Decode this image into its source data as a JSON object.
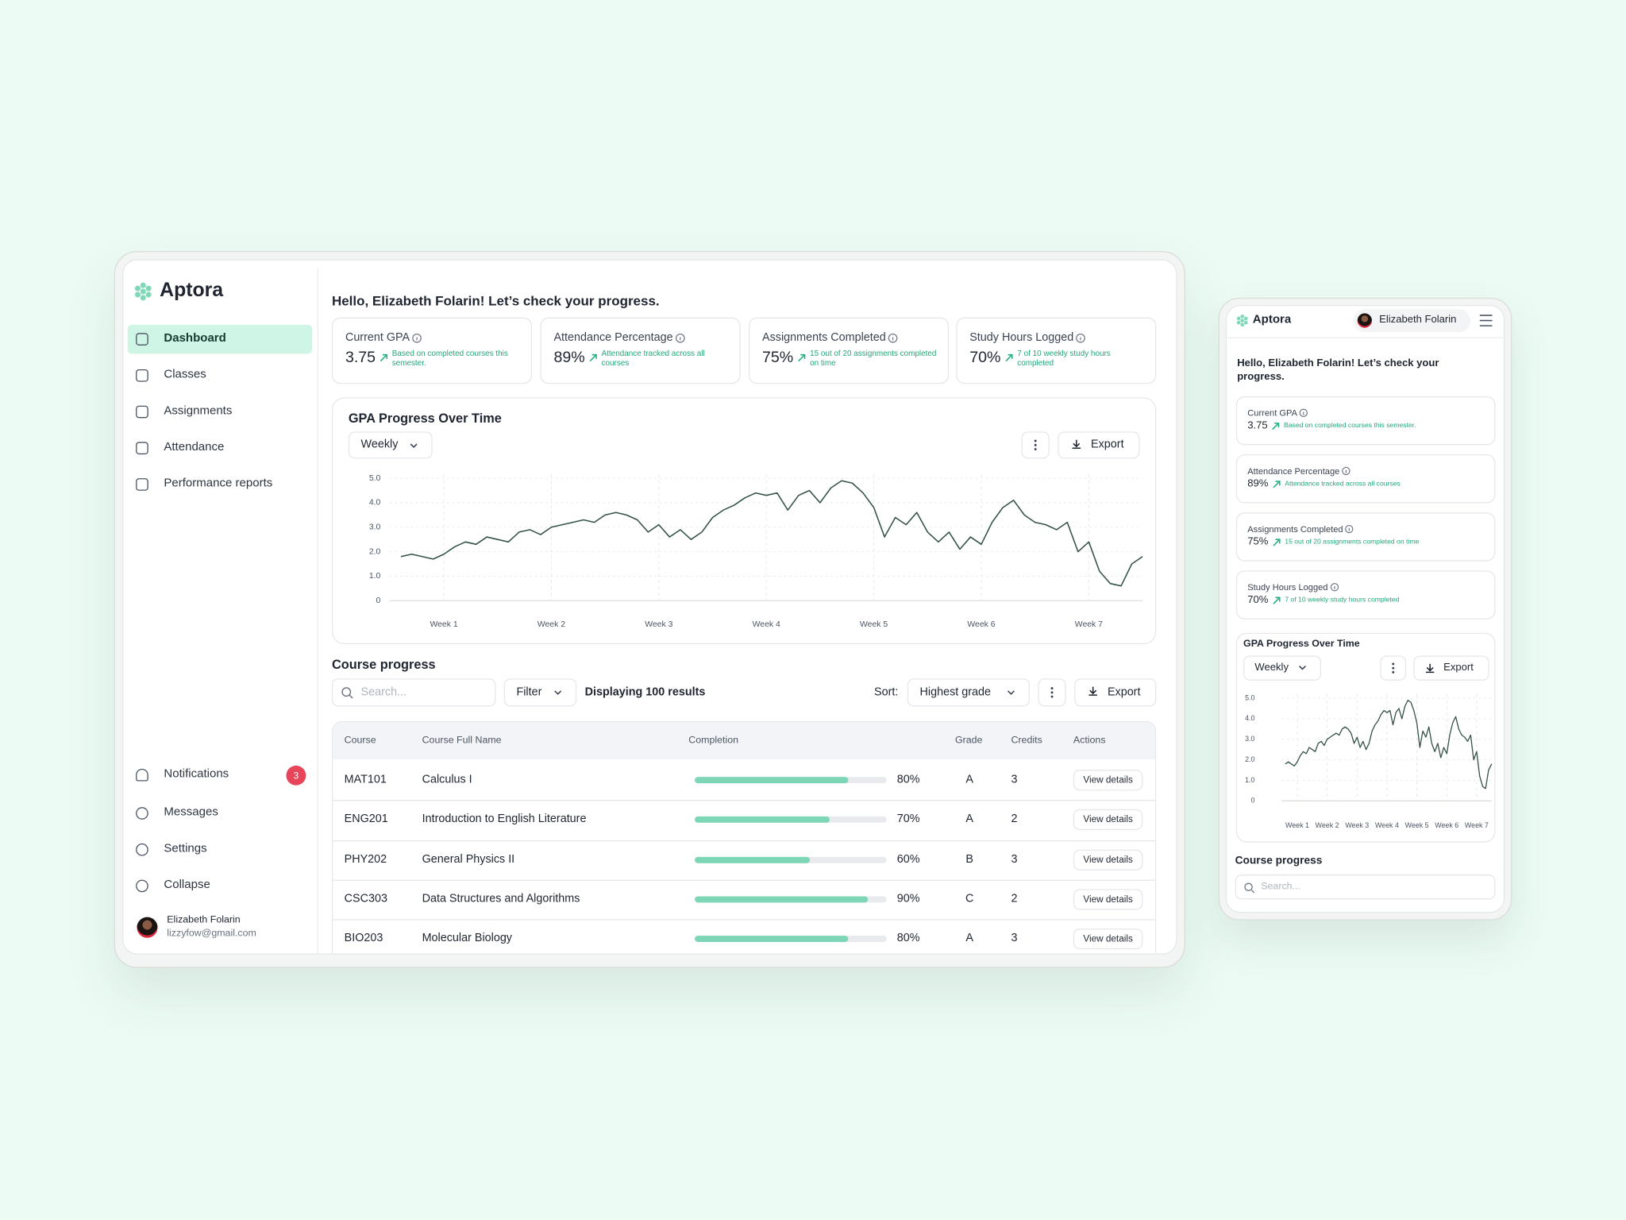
{
  "brand": "Aptora",
  "nav": [
    "Dashboard",
    "Classes",
    "Assignments",
    "Attendance",
    "Performance reports"
  ],
  "nav_bottom": [
    "Notifications",
    "Messages",
    "Settings",
    "Collapse"
  ],
  "notification_count": "3",
  "user": {
    "name": "Elizabeth Folarin",
    "email": "lizzyfow@gmail.com"
  },
  "greeting": "Hello, Elizabeth Folarin! Let’s check your progress.",
  "stats": [
    {
      "label": "Current GPA",
      "value": "3.75",
      "note": "Based on completed courses this semester."
    },
    {
      "label": "Attendance Percentage",
      "value": "89%",
      "note": "Attendance tracked across all courses"
    },
    {
      "label": "Assignments Completed",
      "value": "75%",
      "note": "15 out of 20 assignments completed on time"
    },
    {
      "label": "Study Hours Logged",
      "value": "70%",
      "note": "7 of 10 weekly study hours completed"
    }
  ],
  "chart_controls": {
    "period": "Weekly",
    "export": "Export"
  },
  "chart_data": {
    "type": "line",
    "title": "GPA Progress Over Time",
    "color": "#35524a",
    "grid": true,
    "xlim": [
      0.5,
      7.5
    ],
    "xticks": [
      {
        "value": 1,
        "label": "Week 1"
      },
      {
        "value": 2,
        "label": "Week 2"
      },
      {
        "value": 3,
        "label": "Week 3"
      },
      {
        "value": 4,
        "label": "Week 4"
      },
      {
        "value": 5,
        "label": "Week 5"
      },
      {
        "value": 6,
        "label": "Week 6"
      },
      {
        "value": 7,
        "label": "Week 7"
      }
    ],
    "ylim": [
      0,
      5
    ],
    "yticks": [
      0,
      {
        "value": 1,
        "label": "1.0"
      },
      {
        "value": 2,
        "label": "2.0"
      },
      {
        "value": 3,
        "label": "3.0"
      },
      {
        "value": 4,
        "label": "4.0"
      },
      {
        "value": 5,
        "label": "5.0"
      }
    ],
    "x": [
      0.6,
      0.7,
      0.8,
      0.9,
      1.0,
      1.1,
      1.2,
      1.3,
      1.4,
      1.5,
      1.6,
      1.7,
      1.8,
      1.9,
      2.0,
      2.1,
      2.2,
      2.3,
      2.4,
      2.5,
      2.6,
      2.7,
      2.8,
      2.9,
      3.0,
      3.1,
      3.2,
      3.3,
      3.4,
      3.5,
      3.6,
      3.7,
      3.8,
      3.9,
      4.0,
      4.1,
      4.2,
      4.3,
      4.4,
      4.5,
      4.6,
      4.7,
      4.8,
      4.9,
      5.0,
      5.1,
      5.2,
      5.3,
      5.4,
      5.5,
      5.6,
      5.7,
      5.8,
      5.9,
      6.0,
      6.1,
      6.2,
      6.3,
      6.4,
      6.5,
      6.6,
      6.7,
      6.8,
      6.9,
      7.0,
      7.1,
      7.2,
      7.3,
      7.4,
      7.5
    ],
    "values": [
      1.8,
      1.9,
      1.8,
      1.7,
      1.9,
      2.2,
      2.4,
      2.3,
      2.6,
      2.5,
      2.4,
      2.8,
      2.9,
      2.7,
      3.0,
      3.1,
      3.2,
      3.3,
      3.2,
      3.5,
      3.6,
      3.5,
      3.3,
      2.8,
      3.1,
      2.6,
      2.9,
      2.5,
      2.8,
      3.4,
      3.7,
      3.9,
      4.2,
      4.4,
      4.3,
      4.4,
      3.7,
      4.3,
      4.5,
      4.0,
      4.6,
      4.9,
      4.8,
      4.4,
      3.8,
      2.6,
      3.4,
      3.1,
      3.6,
      2.8,
      2.4,
      2.8,
      2.1,
      2.6,
      2.3,
      3.2,
      3.8,
      4.1,
      3.5,
      3.2,
      3.1,
      2.9,
      3.2,
      2.0,
      2.4,
      1.2,
      0.7,
      0.6,
      1.5,
      1.8
    ]
  },
  "course_progress": {
    "title": "Course progress",
    "search_placeholder": "Search...",
    "filter": "Filter",
    "results": "Displaying 100 results",
    "sort_label": "Sort:",
    "sort": "Highest grade",
    "export": "Export",
    "columns": [
      "Course",
      "Course Full Name",
      "Completion",
      "Grade",
      "Credits",
      "Actions"
    ],
    "rows": [
      {
        "course": "MAT101",
        "name": "Calculus I",
        "completion": 80,
        "completion_label": "80%",
        "grade": "A",
        "credits": "3",
        "action": "View details"
      },
      {
        "course": "ENG201",
        "name": "Introduction to English Literature",
        "completion": 70,
        "completion_label": "70%",
        "grade": "A",
        "credits": "2",
        "action": "View details"
      },
      {
        "course": "PHY202",
        "name": "General Physics II",
        "completion": 60,
        "completion_label": "60%",
        "grade": "B",
        "credits": "3",
        "action": "View details"
      },
      {
        "course": "CSC303",
        "name": "Data Structures and Algorithms",
        "completion": 90,
        "completion_label": "90%",
        "grade": "C",
        "credits": "2",
        "action": "View details"
      },
      {
        "course": "BIO203",
        "name": "Molecular Biology",
        "completion": 80,
        "completion_label": "80%",
        "grade": "A",
        "credits": "3",
        "action": "View details"
      }
    ]
  }
}
